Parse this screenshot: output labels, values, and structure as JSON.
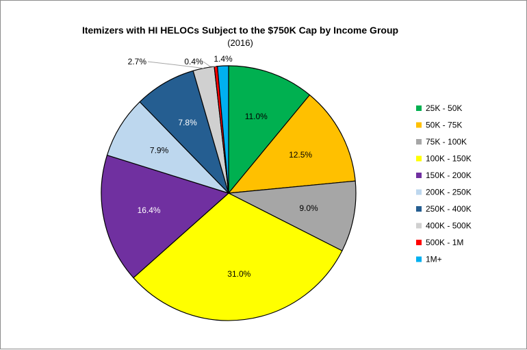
{
  "chart_data": {
    "type": "pie",
    "title": "Itemizers with HI HELOCs Subject to the $750K Cap by Income Group",
    "subtitle": "(2016)",
    "legend_position": "right",
    "slices": [
      {
        "label": "25K - 50K",
        "value": 11.0,
        "display": "11.0%",
        "color": "#00b050",
        "label_color": "#000000"
      },
      {
        "label": "50K - 75K",
        "value": 12.5,
        "display": "12.5%",
        "color": "#ffc000",
        "label_color": "#000000"
      },
      {
        "label": "75K - 100K",
        "value": 9.0,
        "display": "9.0%",
        "color": "#a6a6a6",
        "label_color": "#000000"
      },
      {
        "label": "100K - 150K",
        "value": 31.0,
        "display": "31.0%",
        "color": "#ffff00",
        "label_color": "#000000"
      },
      {
        "label": "150K - 200K",
        "value": 16.4,
        "display": "16.4%",
        "color": "#7030a0",
        "label_color": "#ffffff"
      },
      {
        "label": "200K - 250K",
        "value": 7.9,
        "display": "7.9%",
        "color": "#bdd7ee",
        "label_color": "#000000"
      },
      {
        "label": "250K - 400K",
        "value": 7.8,
        "display": "7.8%",
        "color": "#255e91",
        "label_color": "#ffffff"
      },
      {
        "label": "400K - 500K",
        "value": 2.7,
        "display": "2.7%",
        "color": "#d0d0d0",
        "label_color": "#000000"
      },
      {
        "label": "500K - 1M",
        "value": 0.4,
        "display": "0.4%",
        "color": "#ff0000",
        "label_color": "#000000"
      },
      {
        "label": "1M+",
        "value": 1.4,
        "display": "1.4%",
        "color": "#00b0f0",
        "label_color": "#000000"
      }
    ]
  }
}
